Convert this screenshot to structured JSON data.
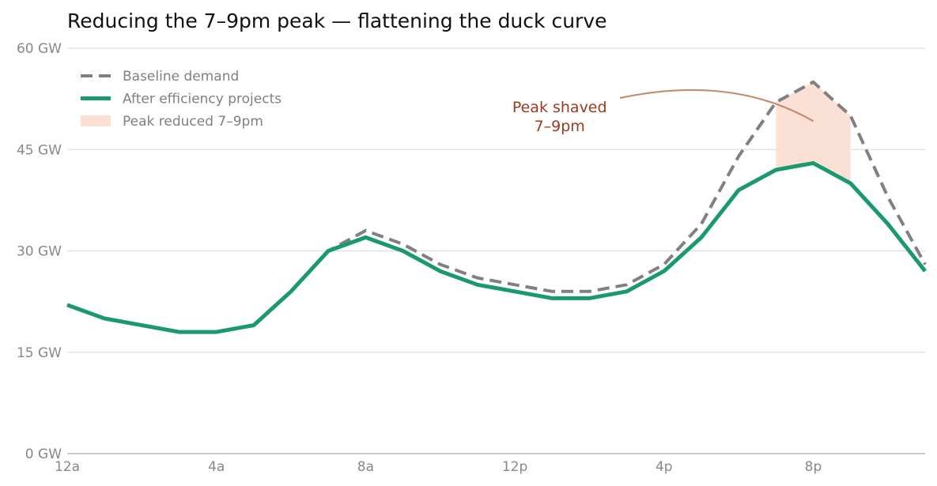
{
  "chart_data": {
    "type": "line",
    "title": "Reducing the 7–9pm peak — flattening the duck curve",
    "xlabel": "",
    "ylabel": "",
    "x": [
      0,
      1,
      2,
      3,
      4,
      5,
      6,
      7,
      8,
      9,
      10,
      11,
      12,
      13,
      14,
      15,
      16,
      17,
      18,
      19,
      20,
      21,
      22,
      23
    ],
    "x_ticks": [
      {
        "x": 0,
        "label": "12a"
      },
      {
        "x": 4,
        "label": "4a"
      },
      {
        "x": 8,
        "label": "8a"
      },
      {
        "x": 12,
        "label": "12p"
      },
      {
        "x": 16,
        "label": "4p"
      },
      {
        "x": 20,
        "label": "8p"
      }
    ],
    "y_ticks": [
      {
        "y": 0,
        "label": "0 GW"
      },
      {
        "y": 15,
        "label": "15 GW"
      },
      {
        "y": 30,
        "label": "30 GW"
      },
      {
        "y": 45,
        "label": "45 GW"
      },
      {
        "y": 60,
        "label": "60 GW"
      }
    ],
    "xlim": [
      0,
      23
    ],
    "ylim": [
      0,
      60
    ],
    "grid": "horizontal",
    "legend_position": "top-left",
    "series": [
      {
        "name": "Baseline demand",
        "style": "dashed",
        "color": "#808080",
        "values": [
          22,
          20,
          19,
          18,
          18,
          19,
          24,
          30,
          33,
          31,
          28,
          26,
          25,
          24,
          24,
          25,
          28,
          34,
          44,
          52,
          55,
          50,
          38,
          28
        ]
      },
      {
        "name": "After efficiency projects",
        "style": "solid",
        "color": "#1a9a6c",
        "values": [
          22,
          20,
          19,
          18,
          18,
          19,
          24,
          30,
          32,
          30,
          27,
          25,
          24,
          23,
          23,
          24,
          27,
          32,
          39,
          42,
          43,
          40,
          34,
          27
        ]
      }
    ],
    "shaded_region": {
      "name": "Peak reduced 7–9pm",
      "color": "#fbe0d6",
      "x_from": 19,
      "x_to": 21
    },
    "annotation": {
      "lines": [
        "Peak shaved",
        "7–9pm"
      ],
      "color": "#9b3a1f",
      "arrow_color": "#c88a72",
      "text_at": [
        13.2,
        50.5
      ],
      "arrow_to": [
        20,
        49.2
      ]
    }
  }
}
